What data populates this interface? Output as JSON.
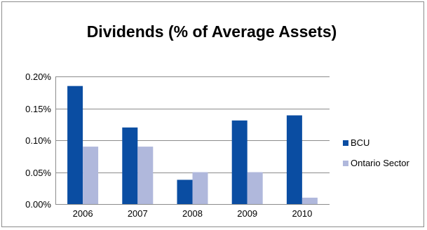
{
  "chart_data": {
    "type": "bar",
    "title": "Dividends (% of Average Assets)",
    "xlabel": "",
    "ylabel": "",
    "categories": [
      "2006",
      "2007",
      "2008",
      "2009",
      "2010"
    ],
    "series": [
      {
        "name": "BCU",
        "values": [
          0.185,
          0.12,
          0.038,
          0.131,
          0.139
        ],
        "color": "#0a4da2"
      },
      {
        "name": "Ontario Sector",
        "values": [
          0.09,
          0.09,
          0.05,
          0.05,
          0.01
        ],
        "color": "#b0b8dc"
      }
    ],
    "ylim": [
      0,
      0.2
    ],
    "yticks": [
      0,
      0.05,
      0.1,
      0.15,
      0.2
    ],
    "ytick_labels": [
      "0.00%",
      "0.05%",
      "0.10%",
      "0.15%",
      "0.20%"
    ],
    "grid": true,
    "legend_position": "right"
  }
}
